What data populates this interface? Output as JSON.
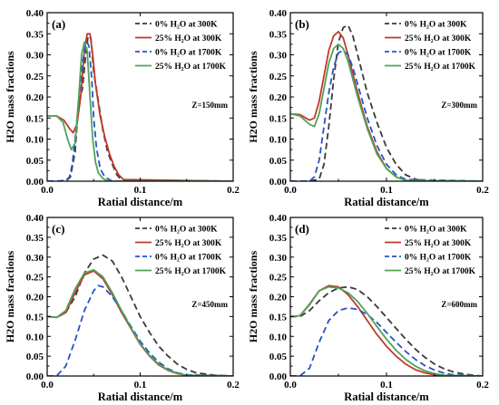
{
  "chart_data": [
    {
      "type": "line",
      "panel_label": "(a)",
      "annotation": "Z=150mm",
      "xlabel": "Ratial distance/m",
      "ylabel": "H2O mass fractions",
      "xlim": [
        0,
        0.2
      ],
      "ylim": [
        0,
        0.4
      ],
      "xticks": [
        "0.0",
        "0.1",
        "0.2"
      ],
      "yticks": [
        "0.00",
        "0.05",
        "0.10",
        "0.15",
        "0.20",
        "0.25",
        "0.30",
        "0.35",
        "0.40"
      ],
      "legend_position": "top-right",
      "series": [
        {
          "name": "0%  H₂O at 300K",
          "color": "#3a3a3a",
          "dash": "dashed",
          "x": [
            0.0,
            0.01,
            0.02,
            0.025,
            0.03,
            0.034,
            0.038,
            0.041,
            0.044,
            0.047,
            0.05,
            0.055,
            0.06,
            0.065,
            0.07,
            0.075,
            0.08,
            0.2
          ],
          "y": [
            0.0,
            0.0,
            0.0,
            0.01,
            0.07,
            0.19,
            0.22,
            0.29,
            0.345,
            0.34,
            0.26,
            0.19,
            0.12,
            0.07,
            0.04,
            0.015,
            0.003,
            0.0
          ]
        },
        {
          "name": "25% H₂O at 300K",
          "color": "#c0392b",
          "dash": "solid",
          "x": [
            0.0,
            0.01,
            0.018,
            0.024,
            0.028,
            0.032,
            0.036,
            0.04,
            0.043,
            0.046,
            0.049,
            0.052,
            0.057,
            0.062,
            0.067,
            0.072,
            0.077,
            0.082,
            0.2
          ],
          "y": [
            0.155,
            0.155,
            0.145,
            0.125,
            0.115,
            0.135,
            0.2,
            0.31,
            0.35,
            0.35,
            0.3,
            0.23,
            0.155,
            0.105,
            0.065,
            0.035,
            0.015,
            0.004,
            0.0
          ]
        },
        {
          "name": "0%  H₂O at 1700K",
          "color": "#2454c6",
          "dash": "dashed",
          "x": [
            0.0,
            0.01,
            0.02,
            0.024,
            0.027,
            0.031,
            0.035,
            0.038,
            0.041,
            0.043,
            0.045,
            0.048,
            0.05,
            0.053,
            0.057,
            0.062,
            0.07,
            0.2
          ],
          "y": [
            0.0,
            0.0,
            0.002,
            0.01,
            0.04,
            0.12,
            0.22,
            0.28,
            0.32,
            0.33,
            0.32,
            0.24,
            0.15,
            0.08,
            0.03,
            0.01,
            0.0,
            0.0
          ]
        },
        {
          "name": "25% H₂O at 1700K",
          "color": "#4fa35a",
          "dash": "solid",
          "x": [
            0.0,
            0.01,
            0.017,
            0.022,
            0.026,
            0.03,
            0.034,
            0.037,
            0.04,
            0.043,
            0.046,
            0.049,
            0.052,
            0.055,
            0.06,
            0.065,
            0.07,
            0.2
          ],
          "y": [
            0.155,
            0.155,
            0.14,
            0.1,
            0.075,
            0.09,
            0.2,
            0.3,
            0.33,
            0.31,
            0.2,
            0.1,
            0.045,
            0.02,
            0.006,
            0.001,
            0.0,
            0.0
          ]
        }
      ]
    },
    {
      "type": "line",
      "panel_label": "(b)",
      "annotation": "Z=300mm",
      "xlabel": "Ratial distance/m",
      "ylabel": "H2O mass fractions",
      "xlim": [
        0,
        0.2
      ],
      "ylim": [
        0,
        0.4
      ],
      "xticks": [
        "0.0",
        "0.1",
        "0.2"
      ],
      "yticks": [
        "0.00",
        "0.05",
        "0.10",
        "0.15",
        "0.20",
        "0.25",
        "0.30",
        "0.35",
        "0.40"
      ],
      "legend_position": "top-right",
      "series": [
        {
          "name": "0%  H₂O at 300K",
          "color": "#3a3a3a",
          "dash": "dashed",
          "x": [
            0.0,
            0.02,
            0.03,
            0.035,
            0.04,
            0.045,
            0.05,
            0.055,
            0.06,
            0.065,
            0.07,
            0.08,
            0.09,
            0.1,
            0.11,
            0.12,
            0.13,
            0.14,
            0.2
          ],
          "y": [
            0.0,
            0.0,
            0.005,
            0.04,
            0.13,
            0.24,
            0.33,
            0.365,
            0.37,
            0.345,
            0.3,
            0.21,
            0.14,
            0.08,
            0.04,
            0.015,
            0.005,
            0.0,
            0.0
          ]
        },
        {
          "name": "25% H₂O at 300K",
          "color": "#c0392b",
          "dash": "solid",
          "x": [
            0.0,
            0.01,
            0.02,
            0.025,
            0.03,
            0.035,
            0.04,
            0.045,
            0.05,
            0.055,
            0.06,
            0.07,
            0.08,
            0.09,
            0.1,
            0.11,
            0.12,
            0.2
          ],
          "y": [
            0.16,
            0.158,
            0.145,
            0.15,
            0.19,
            0.25,
            0.31,
            0.345,
            0.355,
            0.34,
            0.3,
            0.21,
            0.13,
            0.07,
            0.03,
            0.01,
            0.002,
            0.0
          ]
        },
        {
          "name": "0%  H₂O at 1700K",
          "color": "#2454c6",
          "dash": "dashed",
          "x": [
            0.0,
            0.02,
            0.025,
            0.03,
            0.035,
            0.04,
            0.045,
            0.05,
            0.055,
            0.06,
            0.065,
            0.07,
            0.08,
            0.09,
            0.1,
            0.11,
            0.12,
            0.2
          ],
          "y": [
            0.0,
            0.0,
            0.01,
            0.05,
            0.13,
            0.21,
            0.27,
            0.305,
            0.31,
            0.3,
            0.27,
            0.23,
            0.15,
            0.085,
            0.04,
            0.015,
            0.004,
            0.0
          ]
        },
        {
          "name": "25% H₂O at 1700K",
          "color": "#4fa35a",
          "dash": "solid",
          "x": [
            0.0,
            0.01,
            0.02,
            0.025,
            0.03,
            0.035,
            0.04,
            0.045,
            0.05,
            0.055,
            0.06,
            0.07,
            0.08,
            0.09,
            0.1,
            0.11,
            0.12,
            0.2
          ],
          "y": [
            0.16,
            0.155,
            0.135,
            0.13,
            0.16,
            0.22,
            0.28,
            0.315,
            0.325,
            0.315,
            0.285,
            0.2,
            0.125,
            0.065,
            0.03,
            0.01,
            0.002,
            0.0
          ]
        }
      ]
    },
    {
      "type": "line",
      "panel_label": "(c)",
      "annotation": "Z=450mm",
      "xlabel": "Ratial distance/m",
      "ylabel": "H2O mass fractions",
      "xlim": [
        0,
        0.2
      ],
      "ylim": [
        0,
        0.4
      ],
      "xticks": [
        "0.0",
        "0.1",
        "0.2"
      ],
      "yticks": [
        "0.00",
        "0.05",
        "0.10",
        "0.15",
        "0.20",
        "0.25",
        "0.30",
        "0.35",
        "0.40"
      ],
      "legend_position": "top-right",
      "series": [
        {
          "name": "0%  H₂O at 300K",
          "color": "#3a3a3a",
          "dash": "dashed",
          "x": [
            0.0,
            0.01,
            0.02,
            0.03,
            0.04,
            0.05,
            0.06,
            0.07,
            0.08,
            0.09,
            0.1,
            0.11,
            0.12,
            0.13,
            0.14,
            0.15,
            0.16,
            0.18,
            0.2
          ],
          "y": [
            0.15,
            0.148,
            0.16,
            0.2,
            0.26,
            0.295,
            0.305,
            0.29,
            0.25,
            0.2,
            0.15,
            0.11,
            0.075,
            0.05,
            0.03,
            0.017,
            0.008,
            0.002,
            0.0
          ]
        },
        {
          "name": "25% H₂O at 300K",
          "color": "#c0392b",
          "dash": "solid",
          "x": [
            0.0,
            0.01,
            0.02,
            0.03,
            0.04,
            0.05,
            0.06,
            0.07,
            0.08,
            0.09,
            0.1,
            0.11,
            0.12,
            0.13,
            0.14,
            0.15,
            0.2
          ],
          "y": [
            0.15,
            0.148,
            0.16,
            0.21,
            0.255,
            0.265,
            0.245,
            0.205,
            0.16,
            0.12,
            0.08,
            0.05,
            0.028,
            0.014,
            0.006,
            0.002,
            0.0
          ]
        },
        {
          "name": "0%  H₂O at 1700K",
          "color": "#2454c6",
          "dash": "dashed",
          "x": [
            0.0,
            0.01,
            0.02,
            0.03,
            0.04,
            0.05,
            0.055,
            0.06,
            0.07,
            0.08,
            0.09,
            0.1,
            0.11,
            0.12,
            0.13,
            0.14,
            0.15,
            0.2
          ],
          "y": [
            0.0,
            0.0,
            0.025,
            0.09,
            0.165,
            0.215,
            0.228,
            0.225,
            0.2,
            0.165,
            0.125,
            0.088,
            0.058,
            0.035,
            0.018,
            0.008,
            0.003,
            0.0
          ]
        },
        {
          "name": "25% H₂O at 1700K",
          "color": "#4fa35a",
          "dash": "solid",
          "x": [
            0.0,
            0.01,
            0.02,
            0.03,
            0.04,
            0.05,
            0.06,
            0.07,
            0.08,
            0.09,
            0.1,
            0.11,
            0.12,
            0.13,
            0.14,
            0.15,
            0.2
          ],
          "y": [
            0.15,
            0.148,
            0.165,
            0.22,
            0.26,
            0.268,
            0.25,
            0.21,
            0.165,
            0.122,
            0.082,
            0.052,
            0.03,
            0.015,
            0.007,
            0.002,
            0.0
          ]
        }
      ]
    },
    {
      "type": "line",
      "panel_label": "(d)",
      "annotation": "Z=600mm",
      "xlabel": "Ratial distance/m",
      "ylabel": "H2O mass fractions",
      "xlim": [
        0,
        0.2
      ],
      "ylim": [
        0,
        0.4
      ],
      "xticks": [
        "0.0",
        "0.1",
        "0.2"
      ],
      "yticks": [
        "0.00",
        "0.05",
        "0.10",
        "0.15",
        "0.20",
        "0.25",
        "0.30",
        "0.35",
        "0.40"
      ],
      "legend_position": "top-right",
      "series": [
        {
          "name": "0%  H₂O at 300K",
          "color": "#3a3a3a",
          "dash": "dashed",
          "x": [
            0.0,
            0.01,
            0.02,
            0.03,
            0.04,
            0.05,
            0.06,
            0.07,
            0.08,
            0.09,
            0.1,
            0.11,
            0.12,
            0.13,
            0.14,
            0.15,
            0.16,
            0.17,
            0.18,
            0.19,
            0.2
          ],
          "y": [
            0.15,
            0.15,
            0.165,
            0.19,
            0.21,
            0.222,
            0.225,
            0.218,
            0.2,
            0.175,
            0.148,
            0.12,
            0.093,
            0.068,
            0.047,
            0.03,
            0.018,
            0.01,
            0.005,
            0.002,
            0.0
          ]
        },
        {
          "name": "25% H₂O at 300K",
          "color": "#c0392b",
          "dash": "solid",
          "x": [
            0.0,
            0.01,
            0.02,
            0.03,
            0.04,
            0.05,
            0.06,
            0.07,
            0.08,
            0.09,
            0.1,
            0.11,
            0.12,
            0.13,
            0.14,
            0.15,
            0.16,
            0.2
          ],
          "y": [
            0.15,
            0.152,
            0.18,
            0.215,
            0.228,
            0.225,
            0.205,
            0.175,
            0.14,
            0.105,
            0.075,
            0.05,
            0.03,
            0.016,
            0.008,
            0.003,
            0.001,
            0.0
          ]
        },
        {
          "name": "0%  H₂O at 1700K",
          "color": "#2454c6",
          "dash": "dashed",
          "x": [
            0.0,
            0.01,
            0.02,
            0.03,
            0.04,
            0.05,
            0.06,
            0.07,
            0.08,
            0.09,
            0.1,
            0.11,
            0.12,
            0.13,
            0.14,
            0.15,
            0.16,
            0.17,
            0.2
          ],
          "y": [
            0.0,
            0.0,
            0.02,
            0.085,
            0.14,
            0.165,
            0.172,
            0.168,
            0.155,
            0.135,
            0.11,
            0.085,
            0.062,
            0.042,
            0.026,
            0.015,
            0.007,
            0.003,
            0.0
          ]
        },
        {
          "name": "25% H₂O at 1700K",
          "color": "#4fa35a",
          "dash": "solid",
          "x": [
            0.0,
            0.01,
            0.02,
            0.03,
            0.04,
            0.05,
            0.06,
            0.07,
            0.08,
            0.09,
            0.1,
            0.11,
            0.12,
            0.13,
            0.14,
            0.15,
            0.16,
            0.2
          ],
          "y": [
            0.15,
            0.152,
            0.182,
            0.215,
            0.225,
            0.222,
            0.21,
            0.188,
            0.158,
            0.125,
            0.093,
            0.065,
            0.042,
            0.025,
            0.013,
            0.006,
            0.002,
            0.0
          ]
        }
      ]
    }
  ]
}
